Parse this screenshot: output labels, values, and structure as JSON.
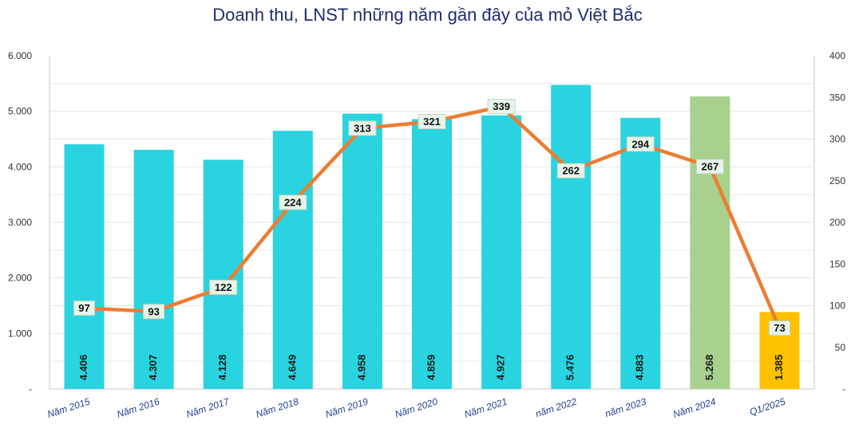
{
  "chart_data": {
    "type": "bar",
    "title": "Doanh thu, LNST những năm gần đây của mỏ Việt Bắc",
    "categories": [
      "Năm 2015",
      "Năm 2016",
      "Năm 2017",
      "Năm 2018",
      "Năm 2019",
      "Năm 2020",
      "Năm 2021",
      "năm 2022",
      "năm 2023",
      "Năm 2024",
      "Q1/2025"
    ],
    "series": [
      {
        "name": "Doanh thu",
        "axis": "left",
        "kind": "bar",
        "values": [
          4406,
          4307,
          4128,
          4649,
          4958,
          4859,
          4927,
          5476,
          4883,
          5268,
          1385
        ],
        "labels": [
          "4.406",
          "4.307",
          "4.128",
          "4.649",
          "4.958",
          "4.859",
          "4.927",
          "5.476",
          "4.883",
          "5.268",
          "1.385"
        ],
        "colors": [
          "#29d4e0",
          "#29d4e0",
          "#29d4e0",
          "#29d4e0",
          "#29d4e0",
          "#29d4e0",
          "#29d4e0",
          "#29d4e0",
          "#29d4e0",
          "#a9d18e",
          "#ffc000"
        ]
      },
      {
        "name": "LNST",
        "axis": "right",
        "kind": "line",
        "color": "#ed7d31",
        "values": [
          97,
          93,
          122,
          224,
          313,
          321,
          339,
          262,
          294,
          267,
          73
        ],
        "labels": [
          "97",
          "93",
          "122",
          "224",
          "313",
          "321",
          "339",
          "262",
          "294",
          "267",
          "73"
        ]
      }
    ],
    "y_left": {
      "lim": [
        0,
        6000
      ],
      "ticks": [
        0,
        1000,
        2000,
        3000,
        4000,
        5000,
        6000
      ],
      "tick_labels": [
        "-",
        "1.000",
        "2.000",
        "3.000",
        "4.000",
        "5.000",
        "6.000"
      ]
    },
    "y_right": {
      "lim": [
        0,
        400
      ],
      "ticks": [
        0,
        50,
        100,
        150,
        200,
        250,
        300,
        350,
        400
      ],
      "tick_labels": [
        "-",
        "50",
        "100",
        "150",
        "200",
        "250",
        "300",
        "350",
        "400"
      ]
    },
    "grid": true,
    "xlabel": "",
    "ylabel": ""
  }
}
